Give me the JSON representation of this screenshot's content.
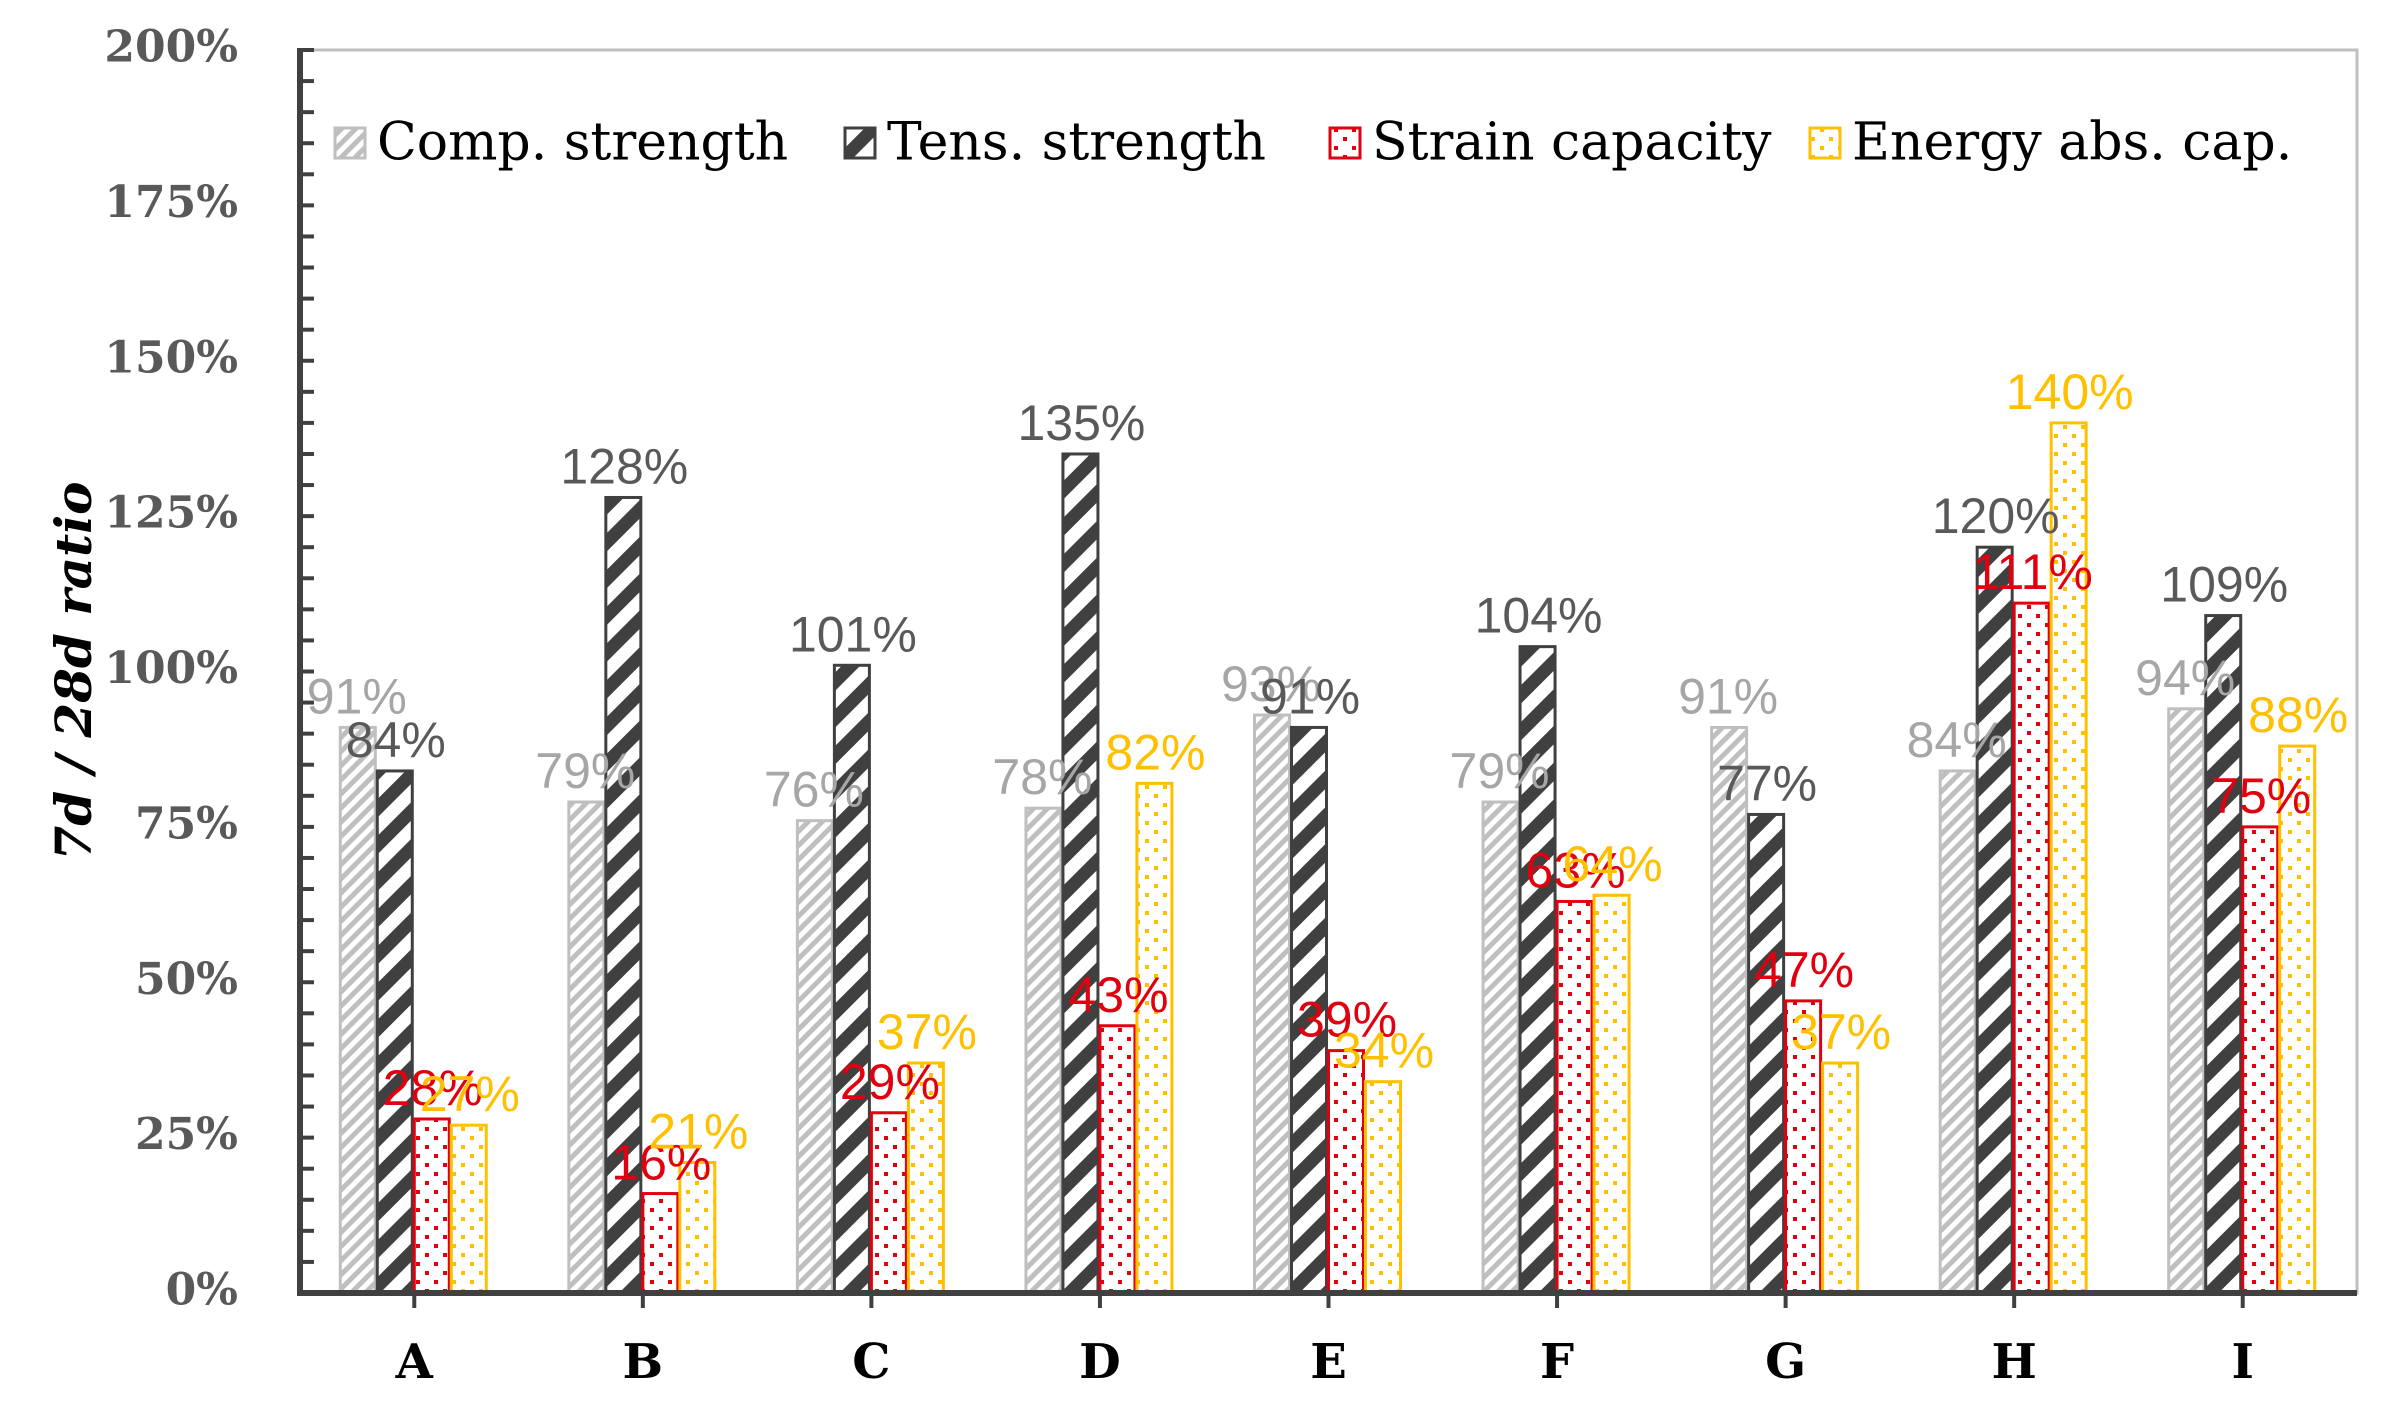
{
  "chart_data": {
    "type": "bar",
    "ylabel": "7d / 28d ratio",
    "xlabel": "",
    "ylim": [
      0,
      200
    ],
    "y_ticks": [
      "0%",
      "25%",
      "50%",
      "75%",
      "100%",
      "125%",
      "150%",
      "175%",
      "200%"
    ],
    "y_tick_values": [
      0,
      25,
      50,
      75,
      100,
      125,
      150,
      175,
      200
    ],
    "categories": [
      "A",
      "B",
      "C",
      "D",
      "E",
      "F",
      "G",
      "H",
      "I"
    ],
    "legend_position": "top",
    "grid": false,
    "series": [
      {
        "name": "Comp. strength",
        "values": [
          91,
          79,
          76,
          78,
          93,
          79,
          91,
          84,
          94
        ],
        "labels": [
          "91%",
          "79%",
          "76%",
          "78%",
          "93%",
          "79%",
          "91%",
          "84%",
          "94%"
        ],
        "color": "#BFBFBF",
        "pattern": "fine-diagonal"
      },
      {
        "name": "Tens. strength",
        "values": [
          84,
          128,
          101,
          135,
          91,
          104,
          77,
          120,
          109
        ],
        "labels": [
          "84%",
          "128%",
          "101%",
          "135%",
          "91%",
          "104%",
          "77%",
          "120%",
          "109%"
        ],
        "color": "#404040",
        "pattern": "wide-diagonal"
      },
      {
        "name": "Strain capacity",
        "values": [
          28,
          16,
          29,
          43,
          39,
          63,
          47,
          111,
          75
        ],
        "labels": [
          "28%",
          "16%",
          "29%",
          "43%",
          "39%",
          "63%",
          "47%",
          "111%",
          "75%"
        ],
        "color": "#E0000F",
        "pattern": "dots"
      },
      {
        "name": "Energy abs. cap.",
        "values": [
          27,
          21,
          37,
          82,
          34,
          64,
          37,
          140,
          88
        ],
        "labels": [
          "27%",
          "21%",
          "37%",
          "82%",
          "34%",
          "64%",
          "37%",
          "140%",
          "88%"
        ],
        "color": "#FFC000",
        "pattern": "dots"
      }
    ]
  }
}
